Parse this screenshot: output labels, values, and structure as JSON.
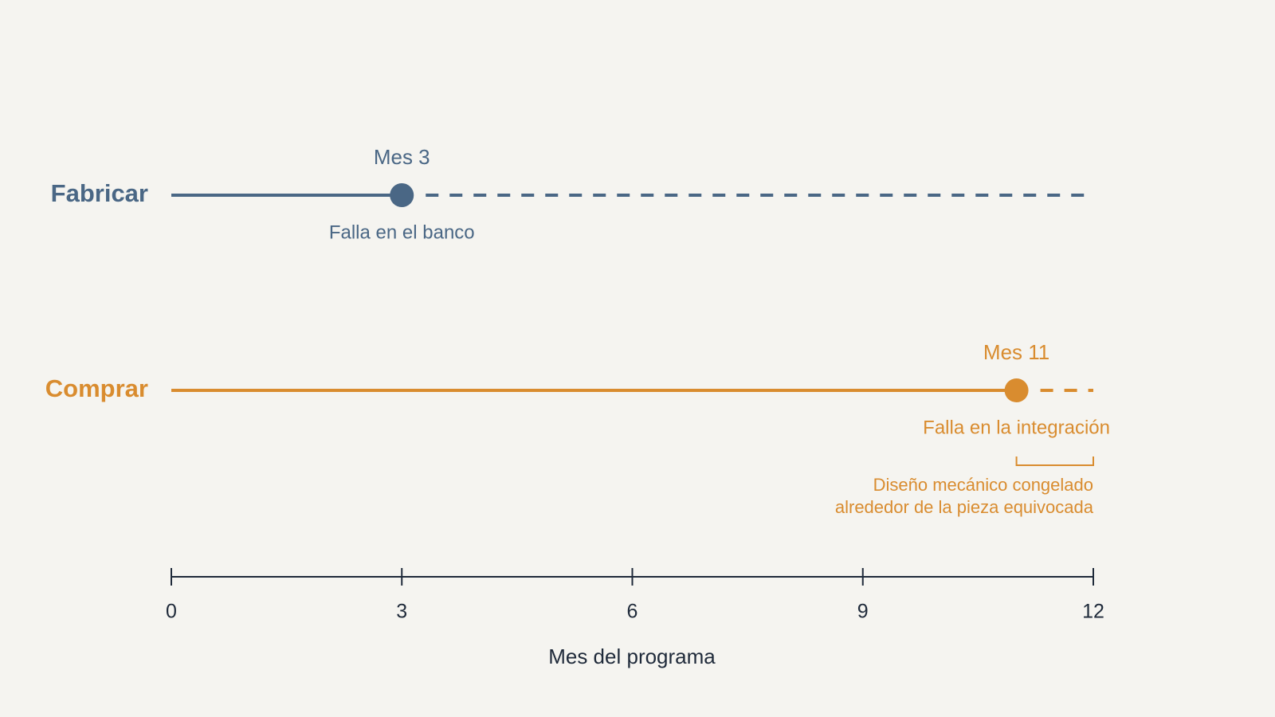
{
  "chart_data": {
    "type": "timeline",
    "xlabel": "Mes del programa",
    "xlim": [
      0,
      12
    ],
    "xticks": [
      0,
      3,
      6,
      9,
      12
    ],
    "series": [
      {
        "name": "Fabricar",
        "color": "#4a6785",
        "values": [
          3
        ],
        "value_labels": [
          "Mes 3"
        ],
        "annotations": [
          "Falla en el banco"
        ]
      },
      {
        "name": "Comprar",
        "color": "#d98c2f",
        "values": [
          11
        ],
        "value_labels": [
          "Mes 11"
        ],
        "annotations": [
          "Falla en la integración"
        ],
        "bracket": {
          "x": [
            11,
            12
          ],
          "lines": [
            "Diseño mecánico congelado",
            "alrededor de la pieza equivocada"
          ]
        }
      }
    ]
  }
}
